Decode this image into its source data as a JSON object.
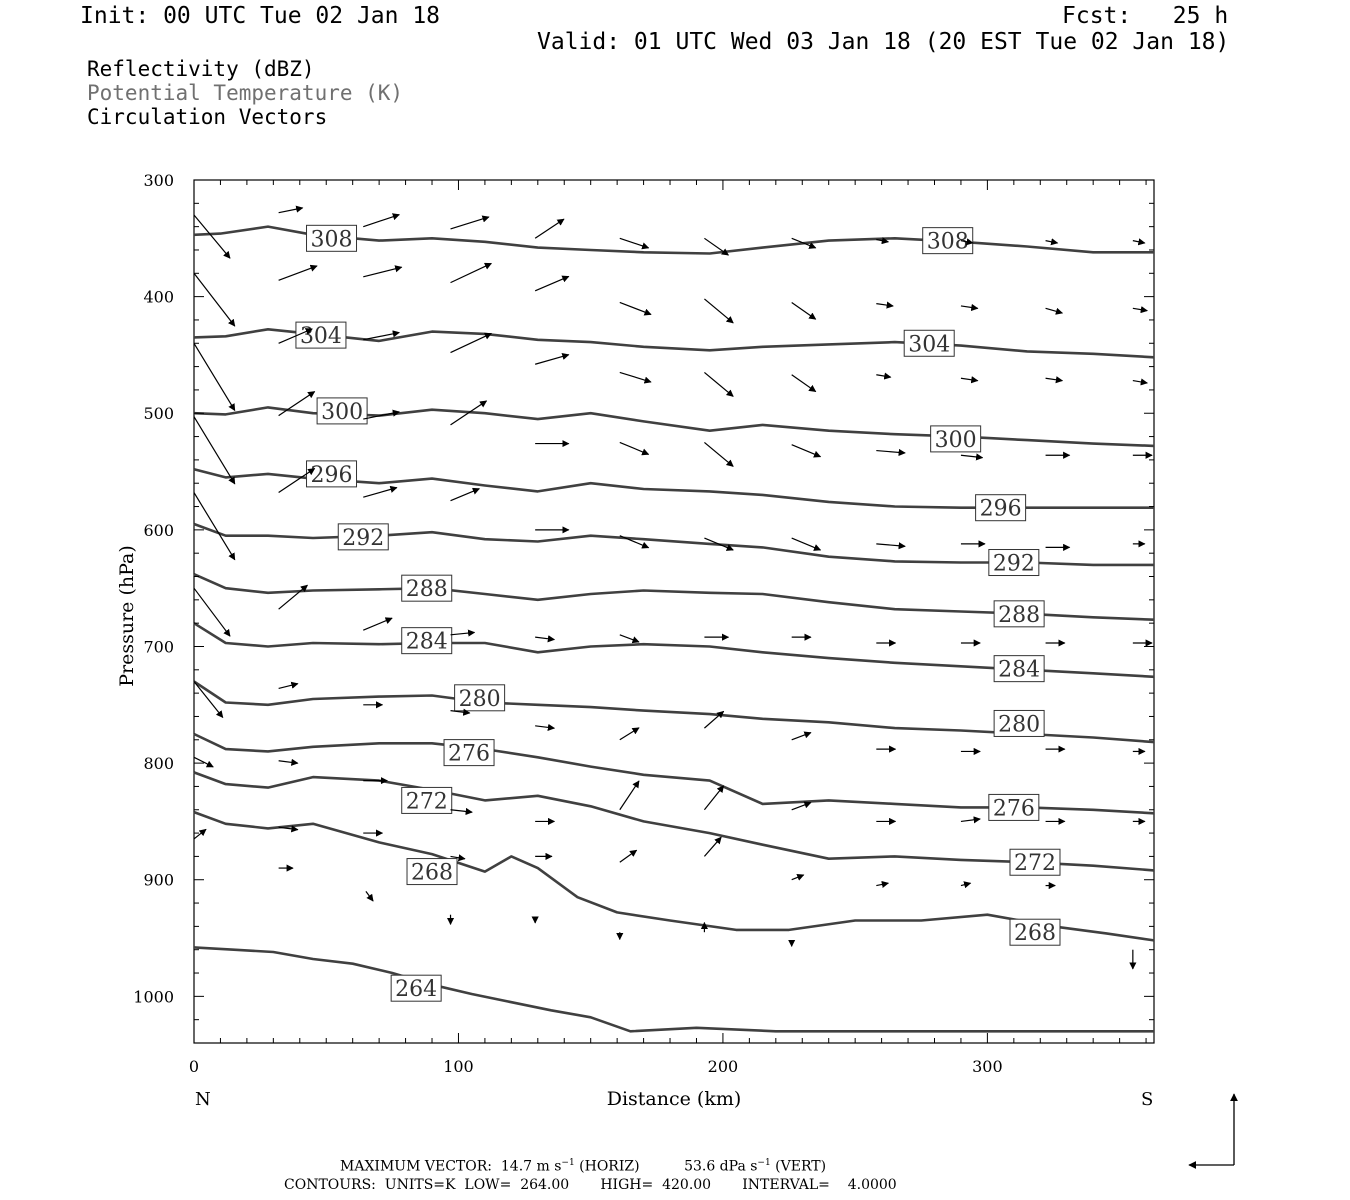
{
  "header": {
    "init": "Init: 00 UTC Tue 02 Jan 18",
    "fcst": "Fcst:   25 h",
    "valid": "Valid: 01 UTC Wed 03 Jan 18 (20 EST Tue 02 Jan 18)"
  },
  "legend": {
    "line1": "Reflectivity (dBZ)",
    "line2": "Potential Temperature (K)",
    "line3": "Circulation Vectors",
    "line2_color": "#707070"
  },
  "chart_data": {
    "type": "line",
    "subtype": "vertical cross-section contour plot with wind vectors",
    "xlabel": "Distance (km)",
    "ylabel": "Pressure (hPa)",
    "xlim": [
      0,
      363
    ],
    "ylim": [
      1040,
      300
    ],
    "y_inverted": true,
    "x_ticks": [
      0,
      100,
      200,
      300
    ],
    "y_ticks": [
      300,
      400,
      500,
      600,
      700,
      800,
      900,
      1000
    ],
    "left_end_label": "N",
    "right_end_label": "S",
    "contour_color": "#404040",
    "contours": [
      {
        "theta": "308",
        "labels": [
          [
            52,
            350
          ],
          [
            285,
            352
          ]
        ],
        "x": [
          0,
          10,
          28,
          45,
          70,
          90,
          110,
          130,
          150,
          170,
          195,
          215,
          240,
          265,
          290,
          315,
          340,
          363
        ],
        "p": [
          347,
          346,
          340,
          347,
          352,
          350,
          353,
          358,
          360,
          362,
          363,
          358,
          352,
          350,
          353,
          357,
          362,
          362
        ]
      },
      {
        "theta": "304",
        "labels": [
          [
            48,
            433
          ],
          [
            278,
            440
          ]
        ],
        "x": [
          0,
          12,
          28,
          45,
          70,
          90,
          110,
          130,
          150,
          170,
          195,
          215,
          240,
          265,
          290,
          315,
          340,
          363
        ],
        "p": [
          435,
          434,
          428,
          432,
          438,
          430,
          432,
          437,
          439,
          443,
          446,
          443,
          441,
          439,
          442,
          447,
          449,
          452
        ]
      },
      {
        "theta": "300",
        "labels": [
          [
            56,
            498
          ],
          [
            288,
            522
          ]
        ],
        "x": [
          0,
          12,
          28,
          45,
          70,
          90,
          110,
          130,
          150,
          170,
          195,
          215,
          240,
          265,
          290,
          315,
          340,
          363
        ],
        "p": [
          500,
          501,
          495,
          500,
          502,
          497,
          500,
          505,
          500,
          507,
          515,
          510,
          515,
          518,
          520,
          523,
          526,
          528
        ]
      },
      {
        "theta": "296",
        "labels": [
          [
            52,
            552
          ],
          [
            305,
            581
          ]
        ],
        "x": [
          0,
          12,
          28,
          45,
          70,
          90,
          110,
          130,
          150,
          170,
          195,
          215,
          240,
          265,
          290,
          315,
          340,
          363
        ],
        "p": [
          548,
          555,
          552,
          556,
          560,
          556,
          562,
          567,
          560,
          565,
          567,
          570,
          576,
          580,
          581,
          581,
          581,
          581
        ]
      },
      {
        "theta": "292",
        "labels": [
          [
            64,
            606
          ],
          [
            310,
            628
          ]
        ],
        "x": [
          0,
          12,
          28,
          45,
          70,
          90,
          110,
          130,
          150,
          170,
          195,
          215,
          240,
          265,
          290,
          315,
          340,
          363
        ],
        "p": [
          595,
          605,
          605,
          607,
          605,
          602,
          608,
          610,
          605,
          608,
          612,
          615,
          623,
          627,
          628,
          628,
          630,
          630
        ]
      },
      {
        "theta": "288",
        "labels": [
          [
            88,
            650
          ],
          [
            312,
            672
          ]
        ],
        "x": [
          0,
          12,
          28,
          45,
          70,
          90,
          110,
          130,
          150,
          170,
          195,
          215,
          240,
          265,
          290,
          315,
          340,
          363
        ],
        "p": [
          638,
          650,
          654,
          652,
          651,
          650,
          655,
          660,
          655,
          652,
          654,
          655,
          662,
          668,
          670,
          672,
          675,
          677
        ]
      },
      {
        "theta": "284",
        "labels": [
          [
            88,
            695
          ],
          [
            312,
            719
          ]
        ],
        "x": [
          0,
          12,
          28,
          45,
          70,
          90,
          110,
          130,
          150,
          170,
          195,
          215,
          240,
          265,
          290,
          315,
          340,
          363
        ],
        "p": [
          680,
          697,
          700,
          697,
          698,
          697,
          697,
          705,
          700,
          698,
          700,
          705,
          710,
          714,
          717,
          720,
          723,
          726
        ]
      },
      {
        "theta": "280",
        "labels": [
          [
            108,
            744
          ],
          [
            312,
            766
          ]
        ],
        "x": [
          0,
          12,
          28,
          45,
          70,
          90,
          110,
          130,
          150,
          170,
          195,
          215,
          240,
          265,
          290,
          315,
          340,
          363
        ],
        "p": [
          730,
          748,
          750,
          745,
          743,
          742,
          748,
          750,
          752,
          755,
          758,
          762,
          765,
          770,
          772,
          775,
          778,
          782
        ]
      },
      {
        "theta": "276",
        "labels": [
          [
            104,
            791
          ],
          [
            310,
            838
          ]
        ],
        "x": [
          0,
          12,
          28,
          45,
          70,
          90,
          110,
          130,
          150,
          170,
          195,
          215,
          240,
          265,
          290,
          315,
          340,
          363
        ],
        "p": [
          775,
          788,
          790,
          786,
          783,
          783,
          788,
          795,
          803,
          810,
          815,
          835,
          832,
          835,
          838,
          838,
          840,
          843
        ]
      },
      {
        "theta": "272",
        "labels": [
          [
            88,
            832
          ],
          [
            318,
            885
          ]
        ],
        "x": [
          0,
          12,
          28,
          45,
          70,
          90,
          110,
          130,
          150,
          170,
          195,
          215,
          240,
          265,
          290,
          315,
          340,
          363
        ],
        "p": [
          808,
          818,
          821,
          812,
          815,
          823,
          832,
          828,
          837,
          850,
          860,
          870,
          882,
          880,
          883,
          885,
          888,
          892
        ]
      },
      {
        "theta": "268",
        "labels": [
          [
            90,
            893
          ],
          [
            318,
            945
          ]
        ],
        "x": [
          0,
          12,
          28,
          45,
          70,
          90,
          110,
          120,
          130,
          145,
          160,
          180,
          205,
          225,
          250,
          275,
          300,
          325,
          345,
          363
        ],
        "p": [
          842,
          852,
          856,
          852,
          868,
          878,
          893,
          880,
          890,
          915,
          928,
          935,
          943,
          943,
          935,
          935,
          930,
          940,
          946,
          952
        ]
      },
      {
        "theta": "264",
        "labels": [
          [
            84,
            993
          ]
        ],
        "x": [
          0,
          15,
          30,
          45,
          60,
          75,
          90,
          105,
          120,
          135,
          150,
          165,
          190,
          220,
          250,
          280,
          310,
          330,
          340,
          350,
          363
        ],
        "p": [
          958,
          960,
          962,
          968,
          972,
          980,
          990,
          998,
          1005,
          1012,
          1018,
          1030,
          1027,
          1030,
          1030,
          1030,
          1030,
          1030,
          1030,
          1030,
          1030
        ]
      }
    ],
    "vectors_note": "circulation vectors in plotted length units (u = horizontal, w = vertical, positive up)",
    "vectors": [
      [
        0,
        330,
        15,
        -18
      ],
      [
        32,
        328,
        10,
        2
      ],
      [
        64,
        340,
        15,
        5
      ],
      [
        97,
        342,
        16,
        5
      ],
      [
        129,
        350,
        12,
        8
      ],
      [
        161,
        350,
        12,
        -4
      ],
      [
        193,
        350,
        10,
        -7
      ],
      [
        226,
        350,
        10,
        -4
      ],
      [
        258,
        351,
        5,
        -1
      ],
      [
        290,
        352,
        5,
        -1
      ],
      [
        322,
        352,
        5,
        -1
      ],
      [
        355,
        352,
        5,
        -1
      ],
      [
        0,
        380,
        17,
        -22
      ],
      [
        32,
        386,
        16,
        6
      ],
      [
        64,
        383,
        16,
        4
      ],
      [
        97,
        388,
        17,
        8
      ],
      [
        129,
        395,
        14,
        6
      ],
      [
        161,
        405,
        13,
        -5
      ],
      [
        193,
        402,
        12,
        -10
      ],
      [
        226,
        405,
        10,
        -7
      ],
      [
        258,
        406,
        7,
        -1
      ],
      [
        290,
        408,
        7,
        -1
      ],
      [
        322,
        410,
        7,
        -2
      ],
      [
        355,
        410,
        6,
        -1
      ],
      [
        0,
        440,
        17,
        -28
      ],
      [
        32,
        440,
        14,
        6
      ],
      [
        64,
        437,
        15,
        3
      ],
      [
        97,
        448,
        17,
        8
      ],
      [
        129,
        458,
        14,
        4
      ],
      [
        161,
        465,
        13,
        -4
      ],
      [
        193,
        465,
        12,
        -10
      ],
      [
        226,
        467,
        10,
        -7
      ],
      [
        258,
        467,
        6,
        -1
      ],
      [
        290,
        470,
        7,
        -1
      ],
      [
        322,
        470,
        7,
        -1
      ],
      [
        355,
        472,
        6,
        -1
      ],
      [
        0,
        503,
        17,
        -28
      ],
      [
        32,
        502,
        15,
        10
      ],
      [
        64,
        505,
        15,
        3
      ],
      [
        97,
        510,
        15,
        10
      ],
      [
        129,
        526,
        14,
        0
      ],
      [
        161,
        525,
        12,
        -5
      ],
      [
        193,
        525,
        12,
        -10
      ],
      [
        226,
        527,
        12,
        -5
      ],
      [
        258,
        532,
        12,
        -1
      ],
      [
        290,
        536,
        9,
        -1
      ],
      [
        322,
        536,
        10,
        0
      ],
      [
        355,
        536,
        8,
        0
      ],
      [
        0,
        568,
        17,
        -28
      ],
      [
        32,
        568,
        15,
        10
      ],
      [
        64,
        572,
        14,
        4
      ],
      [
        97,
        575,
        12,
        5
      ],
      [
        129,
        600,
        14,
        0
      ],
      [
        161,
        605,
        12,
        -5
      ],
      [
        193,
        607,
        12,
        -5
      ],
      [
        226,
        607,
        12,
        -5
      ],
      [
        258,
        612,
        12,
        -1
      ],
      [
        290,
        612,
        10,
        0
      ],
      [
        322,
        615,
        10,
        0
      ],
      [
        355,
        612,
        5,
        0
      ],
      [
        0,
        650,
        15,
        -20
      ],
      [
        32,
        668,
        12,
        10
      ],
      [
        64,
        686,
        12,
        5
      ],
      [
        97,
        690,
        10,
        1
      ],
      [
        129,
        692,
        8,
        -1
      ],
      [
        161,
        690,
        8,
        -3
      ],
      [
        193,
        692,
        10,
        0
      ],
      [
        226,
        692,
        8,
        0
      ],
      [
        258,
        697,
        8,
        0
      ],
      [
        290,
        697,
        8,
        0
      ],
      [
        322,
        697,
        8,
        0
      ],
      [
        355,
        697,
        8,
        0
      ],
      [
        0,
        730,
        12,
        -15
      ],
      [
        32,
        736,
        8,
        2
      ],
      [
        64,
        750,
        8,
        0
      ],
      [
        97,
        755,
        8,
        -1
      ],
      [
        129,
        768,
        8,
        -1
      ],
      [
        161,
        780,
        8,
        5
      ],
      [
        193,
        770,
        8,
        7
      ],
      [
        226,
        780,
        8,
        3
      ],
      [
        258,
        788,
        8,
        0
      ],
      [
        290,
        790,
        8,
        0
      ],
      [
        322,
        788,
        8,
        0
      ],
      [
        355,
        790,
        5,
        0
      ],
      [
        0,
        795,
        8,
        -4
      ],
      [
        32,
        798,
        8,
        -1
      ],
      [
        64,
        815,
        10,
        0
      ],
      [
        97,
        840,
        9,
        -1
      ],
      [
        129,
        850,
        8,
        0
      ],
      [
        161,
        840,
        8,
        12
      ],
      [
        193,
        840,
        8,
        10
      ],
      [
        226,
        840,
        8,
        3
      ],
      [
        258,
        850,
        8,
        0
      ],
      [
        290,
        850,
        8,
        1
      ],
      [
        322,
        850,
        8,
        0
      ],
      [
        355,
        850,
        5,
        0
      ],
      [
        0,
        865,
        5,
        4
      ],
      [
        32,
        855,
        8,
        -1
      ],
      [
        64,
        860,
        8,
        0
      ],
      [
        97,
        880,
        6,
        -1
      ],
      [
        129,
        880,
        7,
        0
      ],
      [
        161,
        885,
        7,
        5
      ],
      [
        193,
        880,
        7,
        8
      ],
      [
        226,
        900,
        5,
        2
      ],
      [
        258,
        905,
        5,
        1
      ],
      [
        290,
        905,
        4,
        1
      ],
      [
        322,
        905,
        4,
        0
      ],
      [
        32,
        890,
        6,
        0
      ],
      [
        65,
        910,
        3,
        -4
      ],
      [
        97,
        930,
        0,
        -4
      ],
      [
        129,
        935,
        0,
        -1
      ],
      [
        161,
        945,
        0,
        -3
      ],
      [
        193,
        945,
        0,
        4
      ],
      [
        226,
        955,
        0,
        -1
      ],
      [
        258,
        955,
        0,
        0
      ],
      [
        290,
        955,
        0,
        0
      ],
      [
        322,
        955,
        0,
        0
      ],
      [
        355,
        960,
        0,
        -8
      ]
    ]
  },
  "footer": {
    "line1_a": "MAXIMUM VECTOR:  14.7 m s",
    "line1_sup1": "−1",
    "line1_b": " (HORIZ)          53.6 dPa s",
    "line1_sup2": "−1",
    "line1_c": " (VERT)",
    "line2": "CONTOURS:  UNITS=K  LOW=  264.00       HIGH=  420.00       INTERVAL=    4.0000"
  }
}
